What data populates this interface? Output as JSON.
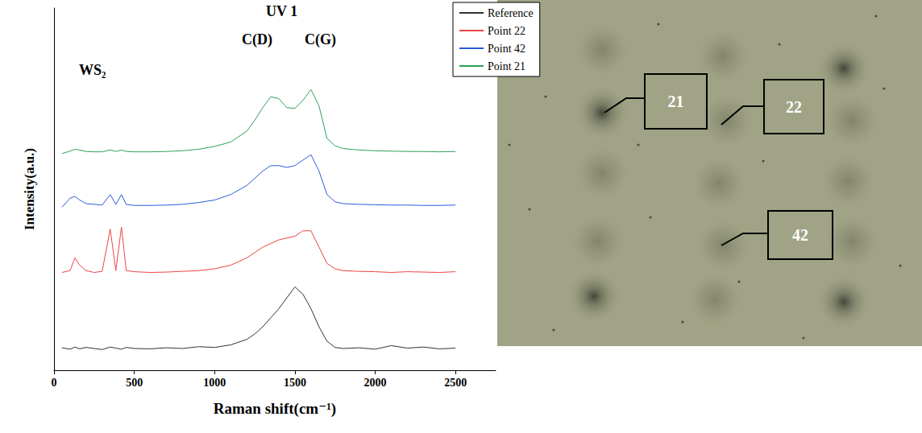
{
  "chart_data": {
    "type": "line",
    "title": "UV 1",
    "x_label": "Raman shift(cm⁻¹)",
    "y_label": "Intensity(a.u.)",
    "annotations": [
      "WS₂",
      "C(D)",
      "C(G)"
    ],
    "x": [
      50,
      100,
      130,
      160,
      200,
      250,
      300,
      350,
      385,
      420,
      450,
      500,
      600,
      700,
      800,
      900,
      1000,
      1100,
      1200,
      1250,
      1300,
      1350,
      1400,
      1450,
      1500,
      1550,
      1600,
      1650,
      1700,
      1750,
      1800,
      1900,
      2000,
      2100,
      2200,
      2300,
      2400,
      2500
    ],
    "series": [
      {
        "name": "Reference",
        "color": "#333333",
        "values": [
          6.2,
          5.8,
          6.4,
          5.9,
          6.3,
          6.0,
          5.7,
          6.4,
          6.1,
          5.8,
          6.3,
          6.0,
          5.9,
          6.2,
          6.0,
          6.5,
          6.3,
          7.0,
          8.5,
          10,
          12,
          14.5,
          17,
          20,
          23,
          21,
          17,
          12,
          8,
          6.3,
          6.0,
          6.2,
          5.8,
          6.8,
          6.1,
          6.4,
          5.9,
          6.1
        ]
      },
      {
        "name": "Point 22",
        "color": "#ee4444",
        "values": [
          27,
          27.5,
          31,
          29,
          27.5,
          27,
          27.3,
          39,
          27.5,
          39.5,
          27.5,
          27.2,
          27,
          27.1,
          27.3,
          27.5,
          28,
          29,
          31,
          32.5,
          34,
          35,
          36,
          36.5,
          37,
          38.5,
          38.5,
          34,
          29.5,
          28,
          27.5,
          27.3,
          27.2,
          27,
          27.2,
          27.1,
          27,
          27.2
        ]
      },
      {
        "name": "Point 42",
        "color": "#2a5bd7",
        "values": [
          45,
          47.5,
          48,
          47,
          46,
          45.8,
          45.6,
          48.5,
          45.8,
          48.5,
          45.8,
          45.5,
          45.5,
          45.6,
          45.8,
          46.3,
          47,
          48.5,
          51,
          53,
          55,
          56.5,
          56.5,
          56,
          56.5,
          58,
          59.5,
          55,
          48.5,
          46.5,
          46,
          45.8,
          45.7,
          45.6,
          45.6,
          45.5,
          45.5,
          45.6
        ]
      },
      {
        "name": "Point 21",
        "color": "#2ca05a",
        "values": [
          59.8,
          60.5,
          61,
          60.8,
          60.4,
          60.3,
          60.3,
          60.8,
          60.4,
          60.8,
          60.4,
          60.3,
          60.3,
          60.4,
          60.6,
          61,
          61.8,
          63,
          66,
          69,
          72.5,
          75.5,
          75,
          72.5,
          72.3,
          74.5,
          77.5,
          73,
          64,
          62,
          61.2,
          60.8,
          60.6,
          60.5,
          60.4,
          60.4,
          60.3,
          60.4
        ]
      }
    ],
    "xlim": [
      0,
      2750
    ],
    "xticks": [
      0,
      500,
      1000,
      1500,
      2000,
      2500
    ],
    "ylim": [
      0,
      100
    ],
    "tick_labels": "x",
    "grid": false,
    "legend": "top-right"
  },
  "image": {
    "labels": [
      "21",
      "22",
      "42"
    ]
  }
}
